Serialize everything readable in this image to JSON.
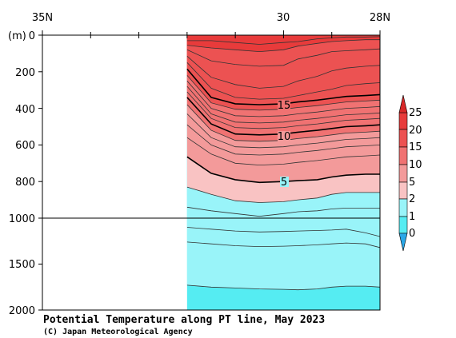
{
  "chart_data": {
    "type": "heatmap",
    "title": "Potential Temperature along PT line, May 2023",
    "credit": "(C) Japan Meteorological Agency",
    "x_ticks": [
      "35N",
      "30",
      "28N"
    ],
    "x_range_lat": [
      35,
      28
    ],
    "data_start_lat": 32,
    "y_unit_label": "(m)",
    "y_ticks_upper": [
      "0",
      "200",
      "400",
      "600",
      "800",
      "1000"
    ],
    "y_ticks_lower": [
      "1500",
      "2000"
    ],
    "y_upper_range": [
      0,
      1000
    ],
    "y_lower_range": [
      1000,
      2000
    ],
    "contour_labels": [
      "15",
      "10",
      "5"
    ],
    "colorbar": {
      "labels": [
        "25",
        "20",
        "15",
        "10",
        "5",
        "2",
        "1",
        "0"
      ],
      "colors": [
        "#e83b3b",
        "#ec5252",
        "#f07272",
        "#f39a9a",
        "#f9c3c3",
        "#99f4f9",
        "#55ecf2",
        "#2aa8e8"
      ]
    },
    "isotherms": [
      {
        "level": 20,
        "depth": [
          30,
          30,
          40,
          50,
          40,
          35,
          20,
          15,
          10,
          10,
          8
        ]
      },
      {
        "level": 19,
        "depth": [
          55,
          70,
          80,
          90,
          80,
          60,
          45,
          35,
          30,
          25,
          25
        ]
      },
      {
        "level": 18,
        "depth": [
          80,
          140,
          160,
          170,
          165,
          130,
          110,
          90,
          85,
          80,
          75
        ]
      },
      {
        "level": 17,
        "depth": [
          115,
          230,
          270,
          290,
          280,
          250,
          225,
          195,
          180,
          170,
          165
        ]
      },
      {
        "level": 16,
        "depth": [
          150,
          290,
          340,
          350,
          345,
          330,
          310,
          295,
          275,
          265,
          260
        ]
      },
      {
        "level": 15,
        "depth": [
          185,
          340,
          375,
          380,
          375,
          365,
          355,
          345,
          335,
          330,
          325
        ]
      },
      {
        "level": 14,
        "depth": [
          220,
          370,
          405,
          410,
          405,
          395,
          385,
          375,
          365,
          360,
          355
        ]
      },
      {
        "level": 13,
        "depth": [
          250,
          400,
          440,
          445,
          440,
          430,
          420,
          410,
          400,
          395,
          390
        ]
      },
      {
        "level": 12,
        "depth": [
          280,
          430,
          475,
          480,
          475,
          465,
          455,
          445,
          435,
          430,
          425
        ]
      },
      {
        "level": 11,
        "depth": [
          310,
          455,
          505,
          510,
          505,
          495,
          485,
          475,
          465,
          460,
          455
        ]
      },
      {
        "level": 10,
        "depth": [
          340,
          485,
          540,
          545,
          540,
          530,
          520,
          510,
          500,
          495,
          490
        ]
      },
      {
        "level": 9,
        "depth": [
          380,
          520,
          575,
          580,
          575,
          565,
          555,
          545,
          535,
          530,
          525
        ]
      },
      {
        "level": 8,
        "depth": [
          430,
          560,
          610,
          615,
          610,
          600,
          590,
          580,
          570,
          565,
          560
        ]
      },
      {
        "level": 7,
        "depth": [
          490,
          600,
          650,
          655,
          650,
          640,
          630,
          620,
          610,
          605,
          600
        ]
      },
      {
        "level": 6,
        "depth": [
          560,
          650,
          700,
          710,
          705,
          695,
          685,
          675,
          665,
          660,
          655
        ]
      },
      {
        "level": 5,
        "depth": [
          665,
          755,
          790,
          805,
          800,
          795,
          790,
          775,
          765,
          760,
          760
        ]
      },
      {
        "level": 4.5,
        "depth": [
          830,
          870,
          905,
          915,
          910,
          900,
          890,
          870,
          860,
          860,
          860
        ]
      },
      {
        "level": 4,
        "depth": [
          940,
          960,
          975,
          990,
          975,
          965,
          960,
          950,
          945,
          945,
          945
        ]
      },
      {
        "level": 3.5,
        "depth": [
          1100,
          1120,
          1140,
          1150,
          1145,
          1140,
          1135,
          1130,
          1120,
          1160,
          1200
        ]
      },
      {
        "level": 3,
        "depth": [
          1260,
          1280,
          1300,
          1310,
          1305,
          1300,
          1290,
          1280,
          1270,
          1280,
          1320
        ]
      },
      {
        "level": 2.5,
        "depth": [
          1730,
          1750,
          1760,
          1770,
          1775,
          1780,
          1770,
          1750,
          1740,
          1740,
          1750
        ]
      }
    ],
    "isotherm_lats": [
      32,
      31.5,
      31,
      30.5,
      30,
      29.7,
      29.3,
      29,
      28.7,
      28.3,
      28
    ]
  }
}
